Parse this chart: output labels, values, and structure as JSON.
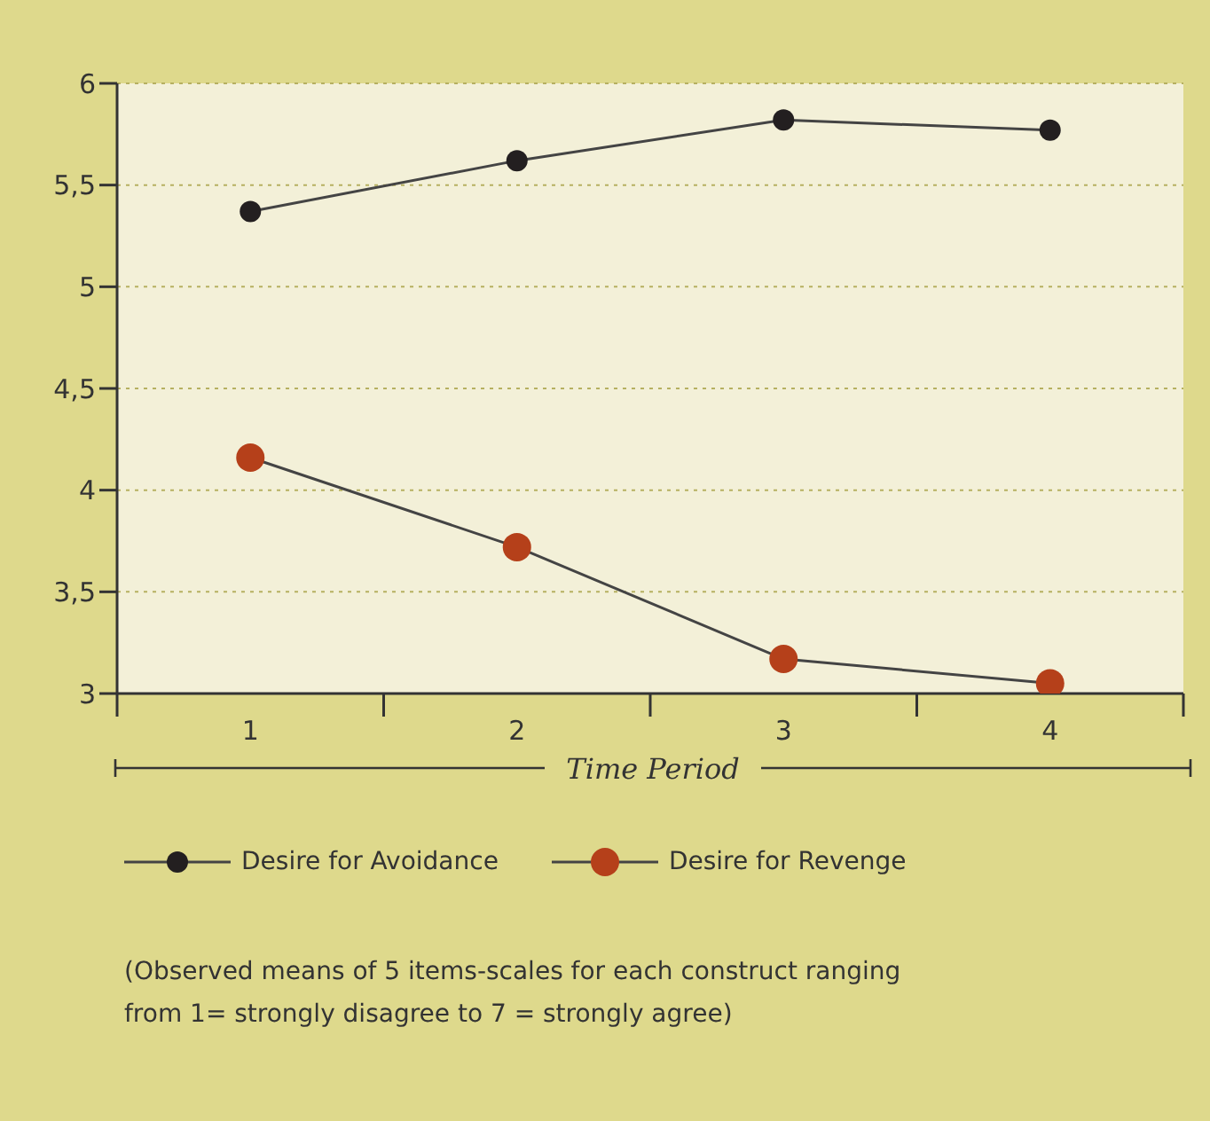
{
  "chart_data": {
    "type": "line",
    "xlabel": "Time Period",
    "x": [
      1,
      2,
      3,
      4
    ],
    "series": [
      {
        "name": "Desire for Avoidance",
        "color": "#231f20",
        "values": [
          5.37,
          5.62,
          5.82,
          5.77
        ]
      },
      {
        "name": "Desire for Revenge",
        "color": "#b5401a",
        "values": [
          4.16,
          3.72,
          3.17,
          3.05
        ]
      }
    ],
    "xlim": [
      0.5,
      4.5
    ],
    "xticks": [
      {
        "value": 0.5,
        "label": null
      },
      1,
      {
        "value": 1.5,
        "label": null
      },
      2,
      {
        "value": 2.5,
        "label": null
      },
      3,
      {
        "value": 3.5,
        "label": null
      },
      4,
      {
        "value": 4.5,
        "label": null
      }
    ],
    "ylim": [
      3,
      6
    ],
    "yticks": [
      3,
      {
        "value": 3.5,
        "label": "3,5"
      },
      4,
      {
        "value": 4.5,
        "label": "4,5"
      },
      5,
      {
        "value": 5.5,
        "label": "5,5"
      },
      6
    ],
    "grid": "y",
    "legend": "bottom",
    "marker": "circle",
    "line_style": "solid",
    "annotations": [
      "(Observed means of 5 items-scales for each construct ranging from 1= strongly disagree to 7 = strongly agree)"
    ]
  }
}
